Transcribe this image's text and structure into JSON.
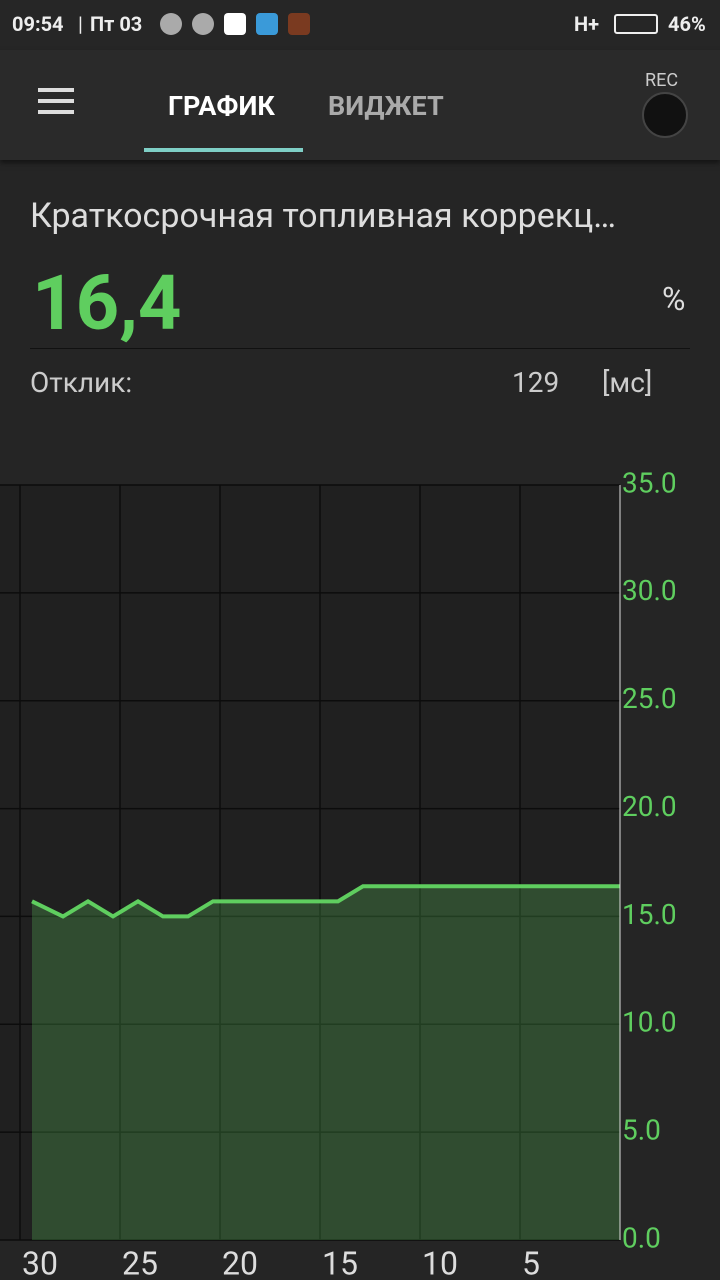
{
  "status_bar": {
    "time": "09:54",
    "date": "Пт 03",
    "network": "H+",
    "battery": "46%"
  },
  "tabs": [
    "ГРАФИК",
    "ВИДЖЕТ"
  ],
  "rec": "REC",
  "sensor": {
    "name": "Краткосрочная топливная коррекц…",
    "value": "16,4",
    "unit": "%",
    "response_label": "Отклик:",
    "response_value": "129",
    "response_unit": "[мс]"
  },
  "chart_data": {
    "type": "area",
    "x": [
      29.4,
      27.85,
      26.6,
      25.35,
      24.1,
      22.85,
      21.6,
      20.35,
      14.1,
      12.85,
      0
    ],
    "values": [
      15.7,
      15.0,
      15.7,
      15.0,
      15.7,
      15.0,
      15.0,
      15.7,
      15.7,
      16.4,
      16.4
    ],
    "color": "#5fce5f",
    "xlim": [
      31,
      0
    ],
    "xticks": [
      30,
      25,
      20,
      15,
      10,
      5
    ],
    "ylim": [
      0,
      35
    ],
    "yticks": [
      {
        "value": 0,
        "label": "0.0"
      },
      {
        "value": 5,
        "label": "5.0"
      },
      {
        "value": 10,
        "label": "10.0"
      },
      {
        "value": 15,
        "label": "15.0"
      },
      {
        "value": 20,
        "label": "20.0"
      },
      {
        "value": 25,
        "label": "25.0"
      },
      {
        "value": 30,
        "label": "30.0"
      },
      {
        "value": 35,
        "label": "35.0"
      }
    ],
    "grid": true
  }
}
